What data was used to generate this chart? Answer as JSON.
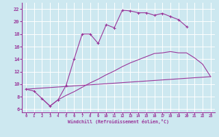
{
  "background_color": "#cde8f0",
  "grid_color": "#ffffff",
  "line_color": "#993399",
  "xlabel": "Windchill (Refroidissement éolien,°C)",
  "xlim": [
    -0.5,
    23.5
  ],
  "ylim": [
    5.5,
    23.0
  ],
  "x_ticks": [
    0,
    1,
    2,
    3,
    4,
    5,
    6,
    7,
    8,
    9,
    10,
    11,
    12,
    13,
    14,
    15,
    16,
    17,
    18,
    19,
    20,
    21,
    22,
    23
  ],
  "y_ticks": [
    6,
    8,
    10,
    12,
    14,
    16,
    18,
    20,
    22
  ],
  "curve1_x": [
    0,
    1,
    2,
    3,
    4,
    5,
    6,
    7,
    8,
    9,
    10,
    11,
    12,
    13,
    14,
    15,
    16,
    17,
    18,
    19,
    20
  ],
  "curve1_y": [
    9.2,
    8.9,
    7.7,
    6.5,
    7.5,
    9.8,
    14.0,
    18.0,
    18.0,
    16.5,
    19.5,
    19.0,
    21.8,
    21.7,
    21.4,
    21.4,
    21.0,
    21.3,
    20.8,
    20.3,
    19.2
  ],
  "curve2_x": [
    2,
    3,
    4,
    5,
    6,
    7,
    8,
    9,
    10,
    11,
    12,
    13,
    14,
    15,
    16,
    17,
    18,
    19,
    20,
    21,
    22,
    23
  ],
  "curve2_y": [
    7.7,
    6.5,
    7.5,
    8.2,
    8.8,
    9.5,
    10.2,
    10.8,
    11.5,
    12.1,
    12.8,
    13.4,
    13.9,
    14.4,
    14.9,
    15.0,
    15.2,
    15.0,
    15.0,
    14.2,
    13.2,
    11.2
  ],
  "curve3_x": [
    0,
    23
  ],
  "curve3_y": [
    9.2,
    11.2
  ]
}
